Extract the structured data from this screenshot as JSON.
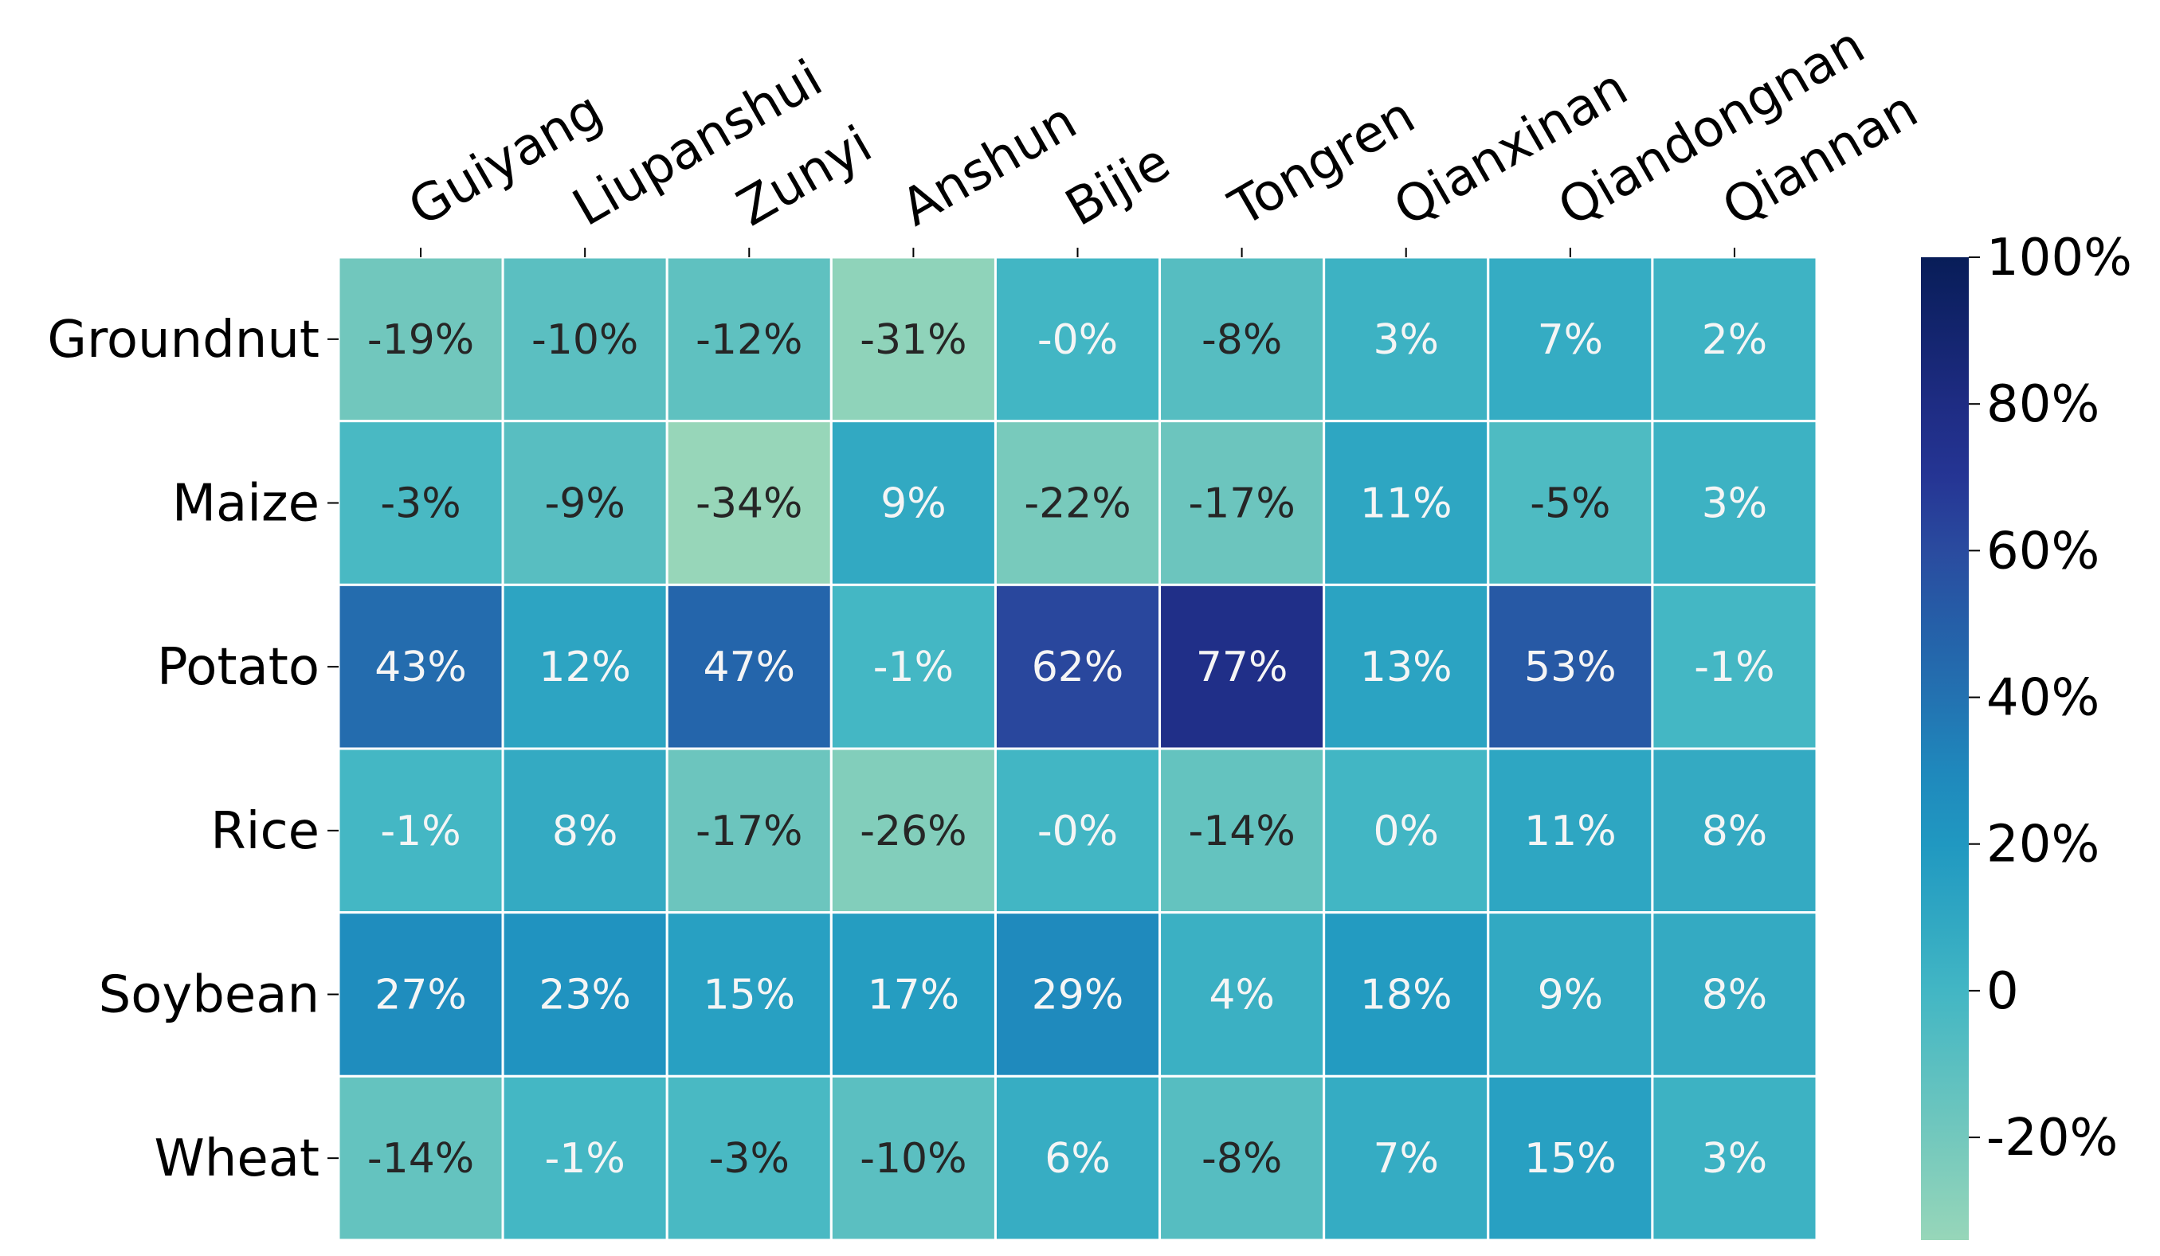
{
  "chart_data": {
    "type": "heatmap",
    "title": "",
    "xlabel": "",
    "ylabel": "",
    "columns": [
      "Guiyang",
      "Liupanshui",
      "Zunyi",
      "Anshun",
      "Bijie",
      "Tongren",
      "Qianxinan",
      "Qiandongnan",
      "Qiannan"
    ],
    "rows": [
      "Groundnut",
      "Maize",
      "Potato",
      "Rice",
      "Soybean",
      "Wheat"
    ],
    "values": [
      [
        -19,
        -10,
        -12,
        -31,
        -0.2,
        -8,
        3,
        7,
        2
      ],
      [
        -3,
        -9,
        -34,
        9,
        -22,
        -17,
        11,
        -5,
        3
      ],
      [
        43,
        12,
        47,
        -1,
        62,
        77,
        13,
        53,
        -1
      ],
      [
        -1,
        8,
        -17,
        -26,
        -0.2,
        -14,
        0,
        11,
        8
      ],
      [
        27,
        23,
        15,
        17,
        29,
        4,
        18,
        9,
        8
      ],
      [
        -14,
        -1,
        -3,
        -10,
        6,
        -8,
        7,
        15,
        3
      ]
    ],
    "labels": [
      [
        "-19%",
        "-10%",
        "-12%",
        "-31%",
        "-0%",
        "-8%",
        "3%",
        "7%",
        "2%"
      ],
      [
        "-3%",
        "-9%",
        "-34%",
        "9%",
        "-22%",
        "-17%",
        "11%",
        "-5%",
        "3%"
      ],
      [
        "43%",
        "12%",
        "47%",
        "-1%",
        "62%",
        "77%",
        "13%",
        "53%",
        "-1%"
      ],
      [
        "-1%",
        "8%",
        "-17%",
        "-26%",
        "-0%",
        "-14%",
        "0%",
        "11%",
        "8%"
      ],
      [
        "27%",
        "23%",
        "15%",
        "17%",
        "29%",
        "4%",
        "18%",
        "9%",
        "8%"
      ],
      [
        "-14%",
        "-1%",
        "-3%",
        "-10%",
        "6%",
        "-8%",
        "7%",
        "15%",
        "3%"
      ]
    ],
    "colorbar": {
      "min": -34,
      "max": 100,
      "ticks": [
        100,
        80,
        60,
        40,
        20,
        0,
        -20
      ],
      "tick_labels": [
        "100%",
        "80%",
        "60%",
        "40%",
        "20%",
        "0",
        "-20%"
      ],
      "colormap": "YlGnBu",
      "color_stops": [
        {
          "v": -34,
          "c": "#97d6b9"
        },
        {
          "v": -20,
          "c": "#73c8bd"
        },
        {
          "v": 0,
          "c": "#42b6c4"
        },
        {
          "v": 10,
          "c": "#30a7c2"
        },
        {
          "v": 20,
          "c": "#2098c1"
        },
        {
          "v": 30,
          "c": "#1f88bc"
        },
        {
          "v": 40,
          "c": "#2372b1"
        },
        {
          "v": 50,
          "c": "#255fa8"
        },
        {
          "v": 60,
          "c": "#2a4b9f"
        },
        {
          "v": 70,
          "c": "#253594"
        },
        {
          "v": 80,
          "c": "#1e2c83"
        },
        {
          "v": 100,
          "c": "#081d58"
        }
      ]
    },
    "text_colors": {
      "light": "#f5f5f5",
      "dark": "#262626"
    },
    "grid_line_color": "#ffffff"
  }
}
